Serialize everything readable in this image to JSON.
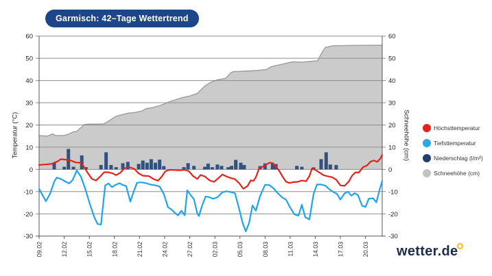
{
  "header": {
    "title": "Garmisch: 42–Tage Wettertrend"
  },
  "axes": {
    "left_label": "Temperatur (°C)",
    "right_label": "Schneehöhe (cm)",
    "y_ticks": [
      60,
      50,
      40,
      30,
      20,
      10,
      0,
      -10,
      -20,
      -30
    ],
    "x_ticks": [
      "09.02",
      "12.02",
      "15.02",
      "18.02",
      "21.02",
      "24.02",
      "27.02",
      "02.03",
      "05.03",
      "08.03",
      "11.03",
      "14.03",
      "17.03",
      "20.03"
    ]
  },
  "legend": [
    {
      "label": "Höchsttemperatur",
      "color": "#e32219"
    },
    {
      "label": "Tiefsttemperatur",
      "color": "#29abe2"
    },
    {
      "label": "Niederschlag (l/m²)",
      "color": "#22406e"
    },
    {
      "label": "Schneehöhe (cm)",
      "color": "#c2c2c2"
    }
  ],
  "logo": {
    "text": "wetter.de",
    "accent_color": "#fdb913"
  },
  "chart_data": {
    "type": "mixed",
    "title": "Garmisch: 42–Tage Wettertrend",
    "x_unit": "day index, 0 = 09.02 … 41 = 22.03, labels every 3 days",
    "ylim": [
      -30,
      60
    ],
    "grid": true,
    "legend_position": "right",
    "series": [
      {
        "name": "Schneehöhe (cm)",
        "type": "area",
        "fill": "#cbcbcb",
        "stroke": "#9c9c9c",
        "points": [
          [
            0,
            15.2
          ],
          [
            1,
            15
          ],
          [
            1.6,
            16
          ],
          [
            2,
            15.2
          ],
          [
            3,
            15.3
          ],
          [
            3.5,
            15.8
          ],
          [
            4,
            16.8
          ],
          [
            4.5,
            17.2
          ],
          [
            5,
            18.8
          ],
          [
            5.4,
            20.2
          ],
          [
            6,
            20.4
          ],
          [
            7,
            20.4
          ],
          [
            7.7,
            20.5
          ],
          [
            8.2,
            21.5
          ],
          [
            8.8,
            23
          ],
          [
            9.2,
            23.9
          ],
          [
            9.7,
            24.4
          ],
          [
            10.6,
            25.3
          ],
          [
            11.4,
            25.6
          ],
          [
            12.3,
            26.3
          ],
          [
            12.8,
            27.4
          ],
          [
            13.4,
            27.7
          ],
          [
            14.3,
            28.6
          ],
          [
            14.9,
            29.4
          ],
          [
            15.6,
            30.5
          ],
          [
            16.4,
            31.5
          ],
          [
            17.2,
            32.4
          ],
          [
            18,
            33
          ],
          [
            18.9,
            34.2
          ],
          [
            19.8,
            37.5
          ],
          [
            20.5,
            39.2
          ],
          [
            21.3,
            40.3
          ],
          [
            22.3,
            41
          ],
          [
            22.9,
            43.5
          ],
          [
            23.2,
            44
          ],
          [
            24.5,
            44.2
          ],
          [
            26,
            44.5
          ],
          [
            27.2,
            45
          ],
          [
            27.6,
            46
          ],
          [
            28.2,
            46.7
          ],
          [
            29,
            47.3
          ],
          [
            29.8,
            48
          ],
          [
            30.3,
            48.4
          ],
          [
            31.5,
            48.3
          ],
          [
            32.3,
            48.6
          ],
          [
            33.3,
            48.9
          ],
          [
            33.7,
            52
          ],
          [
            34.2,
            54.9
          ],
          [
            35.2,
            55.7
          ],
          [
            38,
            55.8
          ],
          [
            41,
            55.9
          ]
        ]
      },
      {
        "name": "Niederschlag (l/m²)",
        "type": "bar",
        "color": "#33517e",
        "points": [
          [
            1.8,
            3.0
          ],
          [
            3.0,
            1.2
          ],
          [
            3.5,
            9.2
          ],
          [
            4.1,
            1.2
          ],
          [
            5.1,
            6.3
          ],
          [
            5.6,
            1.0
          ],
          [
            7.4,
            2.0
          ],
          [
            8.0,
            7.7
          ],
          [
            8.6,
            2.0
          ],
          [
            9.2,
            1.0
          ],
          [
            10.0,
            2.8
          ],
          [
            10.6,
            3.4
          ],
          [
            11.9,
            2.5
          ],
          [
            12.4,
            4.0
          ],
          [
            12.9,
            3.0
          ],
          [
            13.4,
            4.6
          ],
          [
            13.9,
            3.0
          ],
          [
            14.4,
            4.4
          ],
          [
            14.9,
            1.5
          ],
          [
            17.3,
            1.0
          ],
          [
            17.8,
            2.8
          ],
          [
            18.5,
            1.6
          ],
          [
            19.8,
            1.2
          ],
          [
            20.2,
            2.6
          ],
          [
            20.7,
            1.0
          ],
          [
            21.3,
            2.2
          ],
          [
            21.8,
            1.6
          ],
          [
            22.6,
            1.0
          ],
          [
            23.0,
            1.6
          ],
          [
            23.5,
            4.3
          ],
          [
            24.1,
            3.0
          ],
          [
            24.5,
            2.0
          ],
          [
            26.4,
            1.5
          ],
          [
            27.0,
            2.7
          ],
          [
            27.9,
            2.9
          ],
          [
            28.3,
            2.4
          ],
          [
            30.8,
            1.6
          ],
          [
            31.4,
            1.2
          ],
          [
            32.8,
            0.9
          ],
          [
            33.7,
            4.6
          ],
          [
            34.3,
            7.7
          ],
          [
            34.8,
            2.2
          ],
          [
            35.5,
            2.0
          ]
        ]
      },
      {
        "name": "Höchsttemperatur",
        "type": "line",
        "color": "#e32219",
        "points": [
          [
            0,
            2
          ],
          [
            0.7,
            2.2
          ],
          [
            1.5,
            2.5
          ],
          [
            2.2,
            3.6
          ],
          [
            2.6,
            4.6
          ],
          [
            3.2,
            4.4
          ],
          [
            3.8,
            4.0
          ],
          [
            4.4,
            3.1
          ],
          [
            4.9,
            3.0
          ],
          [
            5.3,
            1.5
          ],
          [
            5.8,
            -1.5
          ],
          [
            6.3,
            -4.2
          ],
          [
            6.8,
            -5.0
          ],
          [
            7.3,
            -3.2
          ],
          [
            7.8,
            -1.2
          ],
          [
            8.3,
            -1.3
          ],
          [
            8.8,
            -1.8
          ],
          [
            9.2,
            -2.6
          ],
          [
            9.7,
            -1.5
          ],
          [
            10.2,
            0.5
          ],
          [
            10.8,
            1.0
          ],
          [
            11.4,
            0.2
          ],
          [
            11.9,
            -1.8
          ],
          [
            12.4,
            -2.8
          ],
          [
            13.1,
            -3.0
          ],
          [
            13.7,
            -4.4
          ],
          [
            14.2,
            -5.1
          ],
          [
            14.6,
            -3.5
          ],
          [
            15.1,
            -0.8
          ],
          [
            15.6,
            -0.2
          ],
          [
            16.2,
            -0.3
          ],
          [
            16.8,
            -0.4
          ],
          [
            17.4,
            -0.2
          ],
          [
            17.9,
            -0.8
          ],
          [
            18.4,
            -3.0
          ],
          [
            18.9,
            -4.3
          ],
          [
            19.3,
            -2.5
          ],
          [
            19.8,
            -3.2
          ],
          [
            20.4,
            -5.0
          ],
          [
            20.9,
            -5.6
          ],
          [
            21.4,
            -4.0
          ],
          [
            21.9,
            -2.3
          ],
          [
            22.4,
            -3.2
          ],
          [
            22.9,
            -3.9
          ],
          [
            23.4,
            -4.4
          ],
          [
            23.9,
            -6.2
          ],
          [
            24.4,
            -8.7
          ],
          [
            24.9,
            -7.5
          ],
          [
            25.3,
            -4.9
          ],
          [
            25.6,
            -5.2
          ],
          [
            25.9,
            -3.5
          ],
          [
            26.3,
            0.5
          ],
          [
            26.7,
            1.2
          ],
          [
            27.1,
            2.0
          ],
          [
            27.5,
            3.0
          ],
          [
            27.9,
            2.9
          ],
          [
            28.3,
            1.2
          ],
          [
            28.7,
            -0.7
          ],
          [
            29.1,
            -3.3
          ],
          [
            29.5,
            -5.5
          ],
          [
            29.9,
            -6.1
          ],
          [
            30.4,
            -5.7
          ],
          [
            30.9,
            -5.6
          ],
          [
            31.4,
            -5.0
          ],
          [
            31.9,
            -5.3
          ],
          [
            32.3,
            -3.0
          ],
          [
            32.6,
            0.4
          ],
          [
            33.0,
            -0.2
          ],
          [
            33.5,
            -1.4
          ],
          [
            34.0,
            -2.6
          ],
          [
            34.5,
            -3.1
          ],
          [
            35.0,
            -3.5
          ],
          [
            35.5,
            -4.6
          ],
          [
            36.0,
            -7.2
          ],
          [
            36.5,
            -7.4
          ],
          [
            37.0,
            -5.5
          ],
          [
            37.4,
            -2.8
          ],
          [
            37.8,
            -1.3
          ],
          [
            38.2,
            -1.4
          ],
          [
            38.7,
            1.0
          ],
          [
            39.2,
            1.8
          ],
          [
            39.6,
            3.5
          ],
          [
            40.0,
            4.0
          ],
          [
            40.4,
            3.4
          ],
          [
            40.8,
            5.0
          ],
          [
            41,
            6.5
          ]
        ]
      },
      {
        "name": "Tiefsttemperatur",
        "type": "line",
        "color": "#1ea3ef",
        "points": [
          [
            0,
            -8.8
          ],
          [
            0.4,
            -11.5
          ],
          [
            0.8,
            -14.3
          ],
          [
            1.3,
            -11
          ],
          [
            1.8,
            -5.5
          ],
          [
            2.1,
            -3.7
          ],
          [
            2.6,
            -4.3
          ],
          [
            3.2,
            -5.6
          ],
          [
            3.6,
            -6.3
          ],
          [
            4.0,
            -4.8
          ],
          [
            4.5,
            -0.5
          ],
          [
            5.0,
            -3.3
          ],
          [
            5.5,
            -8.6
          ],
          [
            6.1,
            -16
          ],
          [
            6.6,
            -21.6
          ],
          [
            7.0,
            -24.6
          ],
          [
            7.4,
            -24.8
          ],
          [
            7.7,
            -14
          ],
          [
            7.9,
            -7.2
          ],
          [
            8.3,
            -6.3
          ],
          [
            8.7,
            -8
          ],
          [
            9.1,
            -7
          ],
          [
            9.6,
            -6.2
          ],
          [
            10.0,
            -7
          ],
          [
            10.4,
            -7.5
          ],
          [
            10.9,
            -14.5
          ],
          [
            11.3,
            -10
          ],
          [
            11.7,
            -6
          ],
          [
            12.2,
            -5.8
          ],
          [
            12.8,
            -6.2
          ],
          [
            13.3,
            -6.8
          ],
          [
            13.9,
            -7.2
          ],
          [
            14.4,
            -7.7
          ],
          [
            14.9,
            -11
          ],
          [
            15.4,
            -17
          ],
          [
            15.9,
            -18.3
          ],
          [
            16.2,
            -19.5
          ],
          [
            16.6,
            -20.7
          ],
          [
            17.0,
            -18.6
          ],
          [
            17.4,
            -20.7
          ],
          [
            17.7,
            -9.4
          ],
          [
            18.1,
            -11.5
          ],
          [
            18.5,
            -13.4
          ],
          [
            18.9,
            -19.8
          ],
          [
            19.1,
            -21
          ],
          [
            19.5,
            -16
          ],
          [
            19.9,
            -12.2
          ],
          [
            20.3,
            -12.5
          ],
          [
            20.8,
            -13.2
          ],
          [
            21.3,
            -12.6
          ],
          [
            21.9,
            -10.3
          ],
          [
            22.4,
            -9.8
          ],
          [
            22.9,
            -10.2
          ],
          [
            23.4,
            -10.7
          ],
          [
            23.9,
            -17.7
          ],
          [
            24.3,
            -23.8
          ],
          [
            24.7,
            -27.9
          ],
          [
            25.1,
            -24
          ],
          [
            25.5,
            -16.2
          ],
          [
            25.9,
            -18.6
          ],
          [
            26.4,
            -12
          ],
          [
            27.0,
            -6.9
          ],
          [
            27.5,
            -7.0
          ],
          [
            28.0,
            -8.5
          ],
          [
            28.5,
            -10.6
          ],
          [
            29.0,
            -12.5
          ],
          [
            29.5,
            -13.6
          ],
          [
            30.0,
            -17.2
          ],
          [
            30.5,
            -20.2
          ],
          [
            31.0,
            -20.8
          ],
          [
            31.4,
            -15.9
          ],
          [
            31.8,
            -21.5
          ],
          [
            32.3,
            -22.5
          ],
          [
            32.8,
            -11
          ],
          [
            33.2,
            -6.8
          ],
          [
            33.7,
            -6.8
          ],
          [
            34.2,
            -7.3
          ],
          [
            34.7,
            -9
          ],
          [
            35.3,
            -10.5
          ],
          [
            35.6,
            -11
          ],
          [
            36.0,
            -13.6
          ],
          [
            36.5,
            -10.8
          ],
          [
            36.9,
            -10
          ],
          [
            37.3,
            -11.8
          ],
          [
            37.7,
            -10.7
          ],
          [
            38.1,
            -11.5
          ],
          [
            38.6,
            -16.3
          ],
          [
            39.0,
            -16.9
          ],
          [
            39.4,
            -13.2
          ],
          [
            39.9,
            -13
          ],
          [
            40.3,
            -14.8
          ],
          [
            40.7,
            -9
          ],
          [
            41,
            -5.2
          ]
        ]
      }
    ]
  }
}
